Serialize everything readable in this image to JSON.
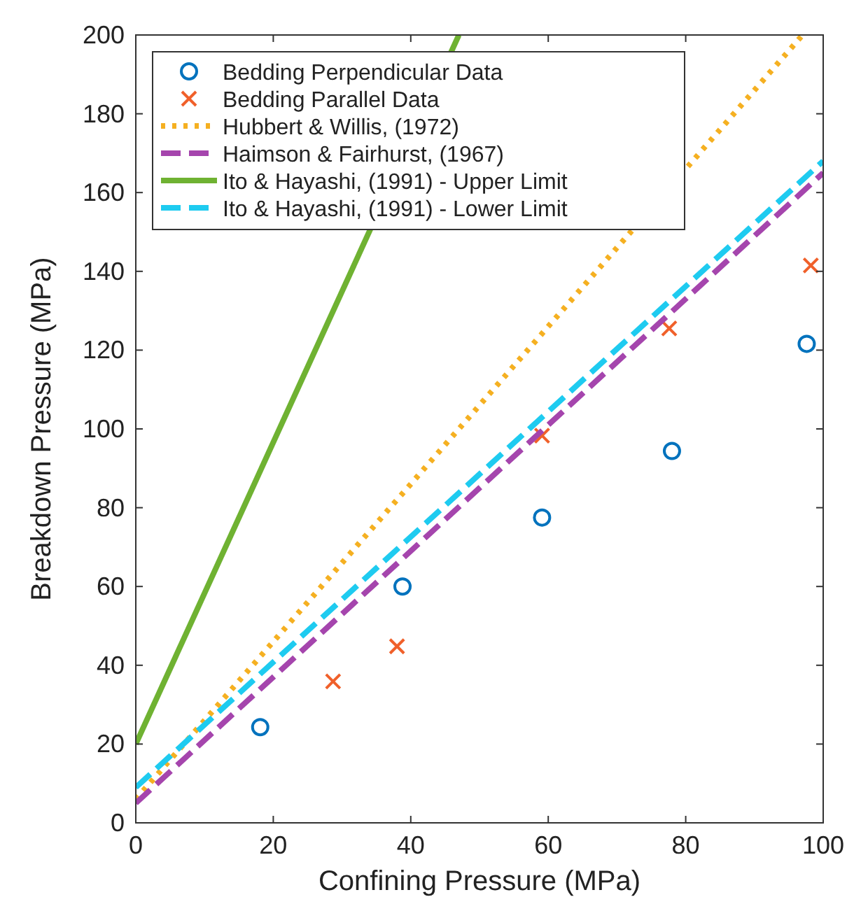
{
  "chart_data": {
    "type": "scatter",
    "xlabel": "Confining Pressure (MPa)",
    "ylabel": "Breakdown Pressure (MPa)",
    "xlim": [
      0,
      100
    ],
    "ylim": [
      0,
      200
    ],
    "xticks": [
      0,
      20,
      40,
      60,
      80,
      100
    ],
    "yticks": [
      0,
      20,
      40,
      60,
      80,
      100,
      120,
      140,
      160,
      180,
      200
    ],
    "grid": false,
    "legend": "top left",
    "series": [
      {
        "name": "Bedding Perpendicular Data",
        "marker": "circle",
        "color": "#0072bd",
        "x": [
          18.1,
          38.8,
          59.1,
          78.0,
          97.6
        ],
        "values": [
          24.3,
          60.0,
          77.5,
          94.4,
          121.6
        ]
      },
      {
        "name": "Bedding Parallel Data",
        "marker": "cross",
        "color": "#f0602a",
        "x": [
          28.7,
          38.0,
          59.1,
          77.6,
          98.2
        ],
        "values": [
          35.9,
          44.8,
          98.3,
          125.5,
          141.5
        ]
      },
      {
        "name": "Hubbert & Willis, (1972)",
        "type": "line",
        "line_style": "dotted",
        "color": "#f5b021",
        "x": [
          0,
          97
        ],
        "values": [
          6,
          200
        ]
      },
      {
        "name": "Haimson & Fairhurst, (1967)",
        "type": "line",
        "line_style": "dashed",
        "color": "#a545ad",
        "x": [
          0,
          100
        ],
        "values": [
          5,
          165
        ]
      },
      {
        "name": "Ito & Hayashi, (1991) - Upper Limit",
        "type": "line",
        "line_style": "solid",
        "color": "#6fb232",
        "x": [
          0,
          47
        ],
        "values": [
          20,
          200
        ]
      },
      {
        "name": "Ito & Hayashi, (1991) - Lower Limit",
        "type": "line",
        "line_style": "dashed",
        "color": "#1ecbf0",
        "x": [
          0,
          100
        ],
        "values": [
          9,
          168
        ]
      }
    ]
  }
}
